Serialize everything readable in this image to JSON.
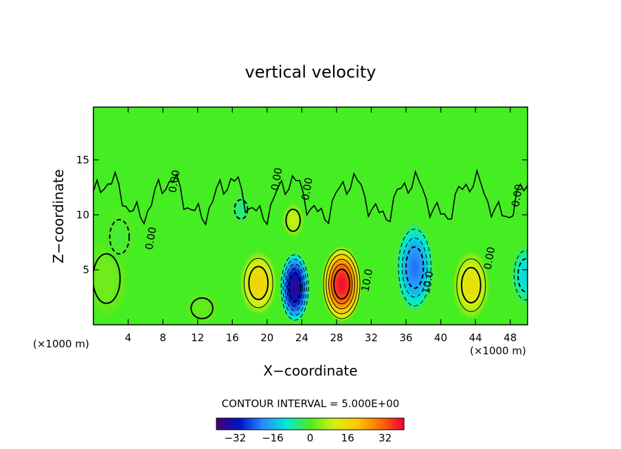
{
  "chart_data": {
    "type": "contour",
    "title": "vertical velocity",
    "xlabel": "X−coordinate",
    "ylabel": "Z−coordinate",
    "x_units_left": "(×1000 m)",
    "x_units_right": "(×1000 m)",
    "xlim": [
      0,
      50
    ],
    "ylim": [
      0,
      19.8
    ],
    "x_ticks": [
      4,
      8,
      12,
      16,
      20,
      24,
      28,
      32,
      36,
      40,
      44,
      48
    ],
    "y_ticks": [
      5,
      10,
      15
    ],
    "contour_interval_text": "CONTOUR INTERVAL = 5.000E+00",
    "contour_labels": [
      {
        "text": "0.00",
        "x": 9.7,
        "y": 13.0
      },
      {
        "text": "0.00",
        "x": 7.0,
        "y": 7.8
      },
      {
        "text": "0.00",
        "x": 21.5,
        "y": 13.2
      },
      {
        "text": "0.00",
        "x": 25.0,
        "y": 12.3
      },
      {
        "text": "0.00",
        "x": 49.2,
        "y": 11.7
      },
      {
        "text": "10.0",
        "x": 31.9,
        "y": 4.0
      },
      {
        "text": "10.0",
        "x": 38.9,
        "y": 3.8
      },
      {
        "text": "0.00",
        "x": 46.0,
        "y": 6.0
      }
    ],
    "cells": [
      {
        "x": 1.5,
        "z": 4.2,
        "w": 0.07,
        "rx": 2.5,
        "rz": 3.6
      },
      {
        "x": 3.0,
        "z": 8.0,
        "w": -0.03,
        "rx": 1.8,
        "rz": 2.5
      },
      {
        "x": 12.5,
        "z": 1.5,
        "w": 0.03,
        "rx": 2.0,
        "rz": 1.5
      },
      {
        "x": 19.0,
        "z": 3.8,
        "w": 0.45,
        "rx": 2.2,
        "rz": 3.0
      },
      {
        "x": 23.2,
        "z": 3.4,
        "w": -0.92,
        "rx": 1.8,
        "rz": 3.4
      },
      {
        "x": 28.6,
        "z": 3.7,
        "w": 0.98,
        "rx": 2.4,
        "rz": 3.6
      },
      {
        "x": 37.0,
        "z": 5.2,
        "w": -0.55,
        "rx": 2.3,
        "rz": 4.3
      },
      {
        "x": 43.5,
        "z": 3.6,
        "w": 0.38,
        "rx": 2.2,
        "rz": 3.2
      },
      {
        "x": 49.8,
        "z": 4.5,
        "w": -0.3,
        "rx": 1.8,
        "rz": 3.0
      },
      {
        "x": 23.0,
        "z": 9.5,
        "w": 0.25,
        "rx": 1.3,
        "rz": 1.6
      },
      {
        "x": 17.0,
        "z": 10.5,
        "w": -0.15,
        "rx": 1.2,
        "rz": 1.4
      }
    ],
    "colorbar": {
      "range": [
        -40,
        40
      ],
      "tick_values": [
        -32,
        -16,
        0,
        16,
        32
      ],
      "tick_labels": [
        "−32",
        "−16",
        "0",
        "16",
        "32"
      ]
    }
  }
}
